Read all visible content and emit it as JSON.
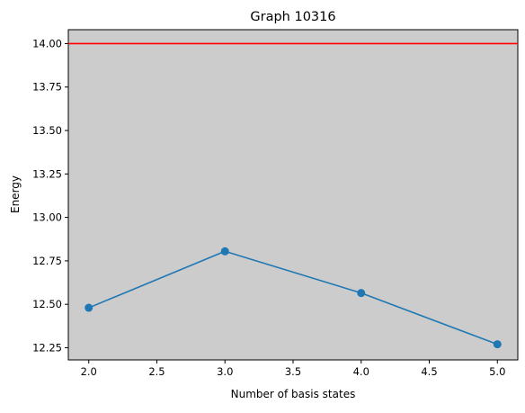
{
  "chart_data": {
    "type": "line",
    "title": "Graph 10316",
    "xlabel": "Number of basis states",
    "ylabel": "Energy",
    "x": [
      2.0,
      3.0,
      4.0,
      5.0
    ],
    "y": [
      12.48,
      12.805,
      12.565,
      12.27
    ],
    "xlim": [
      1.85,
      5.15
    ],
    "ylim": [
      12.18,
      14.08
    ],
    "xticks": [
      "2.0",
      "2.5",
      "3.0",
      "3.5",
      "4.0",
      "4.5",
      "5.0"
    ],
    "yticks": [
      "12.25",
      "12.50",
      "12.75",
      "13.00",
      "13.25",
      "13.50",
      "13.75",
      "14.00"
    ],
    "reference_line": {
      "y": 14.0,
      "color": "#ff0000"
    },
    "series_color": "#1f77b4",
    "plot_background": "#cccccc",
    "grid": false,
    "marker": "circle"
  }
}
